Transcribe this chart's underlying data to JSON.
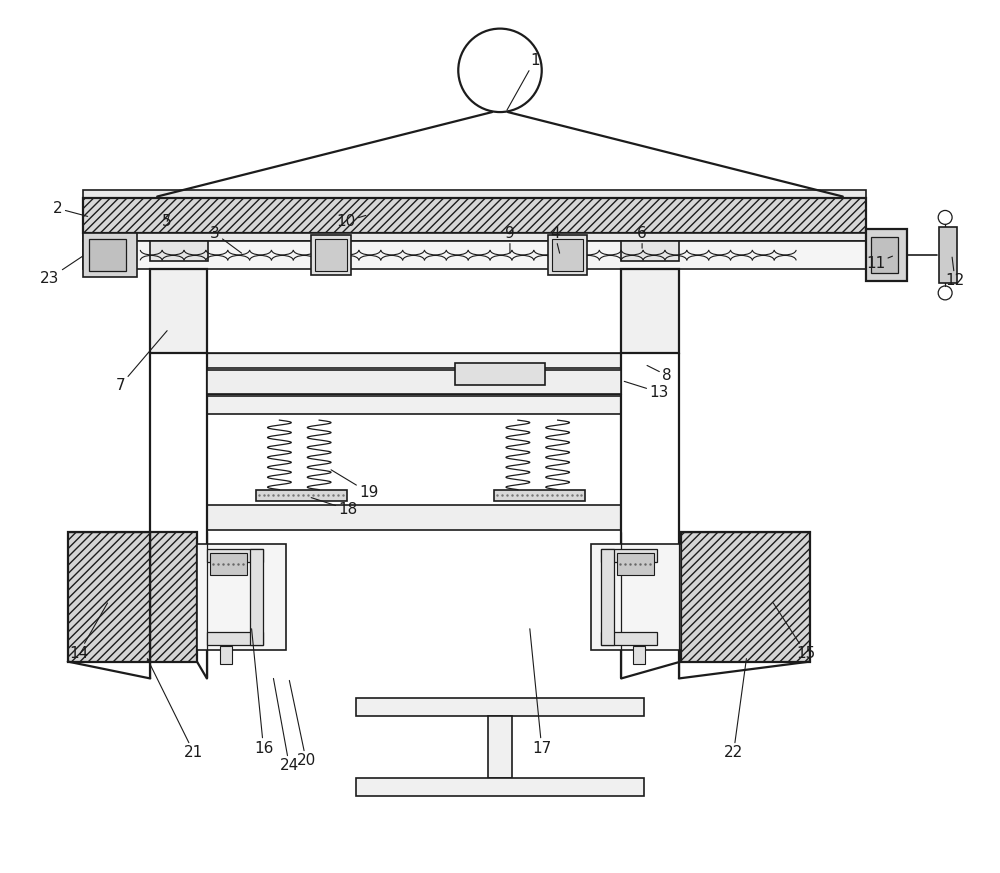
{
  "bg": "#ffffff",
  "lc": "#1c1c1c",
  "fig_w": 10.0,
  "fig_h": 8.73,
  "dpi": 100,
  "label_fs": 11
}
